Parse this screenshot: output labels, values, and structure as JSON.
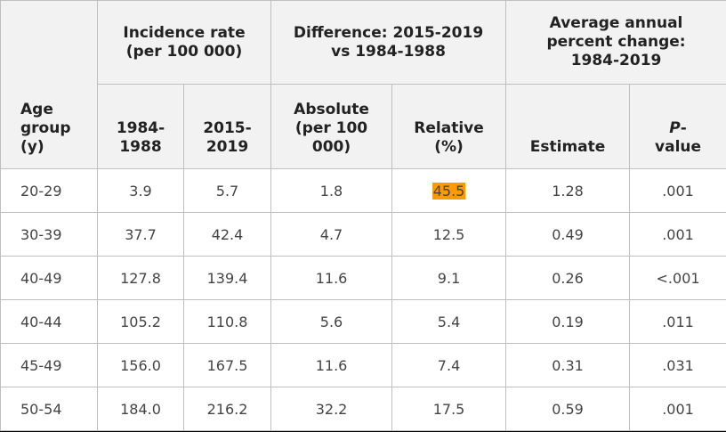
{
  "header": {
    "age_group": [
      "Age",
      "group",
      "(y)"
    ],
    "incidence_rate": [
      "Incidence rate",
      "(per 100 000)"
    ],
    "difference": [
      "Difference: 2015-2019",
      "vs 1984-1988"
    ],
    "aapc": [
      "Average annual",
      "percent change:",
      "1984-2019"
    ],
    "col_1984": [
      "1984-",
      "1988"
    ],
    "col_2015": [
      "2015-",
      "2019"
    ],
    "absolute": [
      "Absolute",
      "(per 100",
      "000)"
    ],
    "relative": [
      "Relative",
      "(%)"
    ],
    "estimate": "Estimate",
    "p_value": [
      "P",
      "-",
      "value"
    ]
  },
  "rows": [
    {
      "age": "20-29",
      "r1984": "3.9",
      "r2015": "5.7",
      "abs": "1.8",
      "rel": "45.5",
      "est": "1.28",
      "p": ".001"
    },
    {
      "age": "30-39",
      "r1984": "37.7",
      "r2015": "42.4",
      "abs": "4.7",
      "rel": "12.5",
      "est": "0.49",
      "p": ".001"
    },
    {
      "age": "40-49",
      "r1984": "127.8",
      "r2015": "139.4",
      "abs": "11.6",
      "rel": "9.1",
      "est": "0.26",
      "p": "<.001"
    },
    {
      "age": "40-44",
      "r1984": "105.2",
      "r2015": "110.8",
      "abs": "5.6",
      "rel": "5.4",
      "est": "0.19",
      "p": ".011"
    },
    {
      "age": "45-49",
      "r1984": "156.0",
      "r2015": "167.5",
      "abs": "11.6",
      "rel": "7.4",
      "est": "0.31",
      "p": ".031"
    },
    {
      "age": "50-54",
      "r1984": "184.0",
      "r2015": "216.2",
      "abs": "32.2",
      "rel": "17.5",
      "est": "0.59",
      "p": ".001"
    }
  ],
  "colors": {
    "highlight": "#ff9b00",
    "header_bg": "#f2f2f2",
    "border": "#bfbfbf"
  }
}
